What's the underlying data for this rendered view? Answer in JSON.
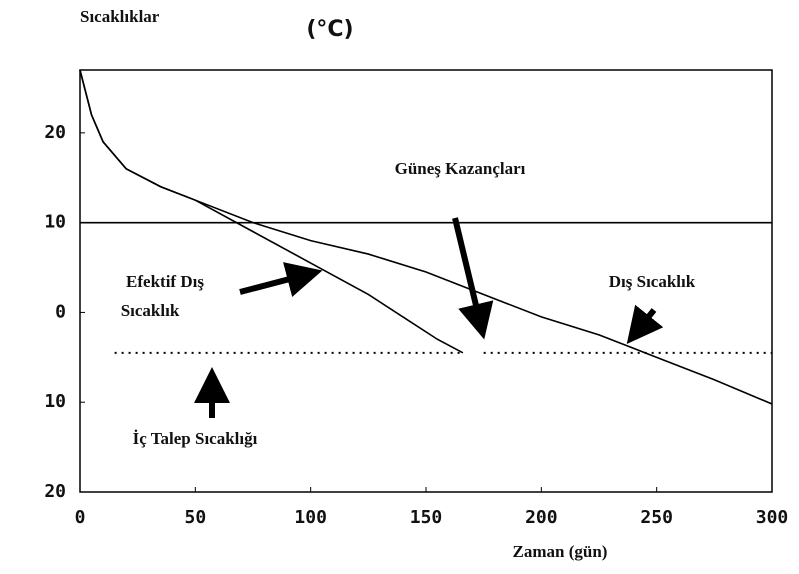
{
  "chart_data": {
    "type": "line",
    "title": "Sıcaklıklar",
    "unit_label": "(°C)",
    "x_label": "Zaman (gün)",
    "xlim": [
      0,
      300
    ],
    "xticks": [
      0,
      50,
      100,
      150,
      200,
      250,
      300
    ],
    "ylim": [
      -20,
      27
    ],
    "yticks": [
      {
        "value": -20,
        "label": "20"
      },
      {
        "value": -10,
        "label": "10"
      },
      0,
      10,
      20
    ],
    "series": [
      {
        "color": "#000000",
        "style": "solid",
        "x": [
          0,
          5,
          10,
          20,
          35,
          50,
          75,
          100,
          125,
          150,
          175,
          200,
          225,
          250,
          275,
          300
        ],
        "values": [
          27,
          22,
          19,
          16,
          14,
          12.5,
          10,
          8,
          6.5,
          4.5,
          2,
          -0.5,
          -2.5,
          -5,
          -7.5,
          -10.2
        ]
      },
      {
        "color": "#000000",
        "style": "solid",
        "x": [
          0,
          5,
          10,
          20,
          35,
          50,
          75,
          100,
          125,
          140,
          155,
          166
        ],
        "values": [
          27,
          22,
          19,
          16,
          14,
          12.5,
          9,
          5.5,
          2,
          -0.5,
          -3,
          -4.5
        ]
      },
      {
        "color": "#000000",
        "style": "dotted",
        "x": [
          15,
          165,
          170,
          175,
          300
        ],
        "values": [
          -4.5,
          -4.5,
          null,
          -4.5,
          -4.5
        ]
      },
      {
        "color": "#000000",
        "style": "solid",
        "x": [
          0,
          300
        ],
        "values": [
          10,
          10
        ]
      }
    ],
    "annotations": [
      "Güneş Kazançları",
      "Efektif Dış",
      "Sıcaklık",
      "Dış Sıcaklık",
      "İç Talep Sıcaklığı"
    ]
  }
}
